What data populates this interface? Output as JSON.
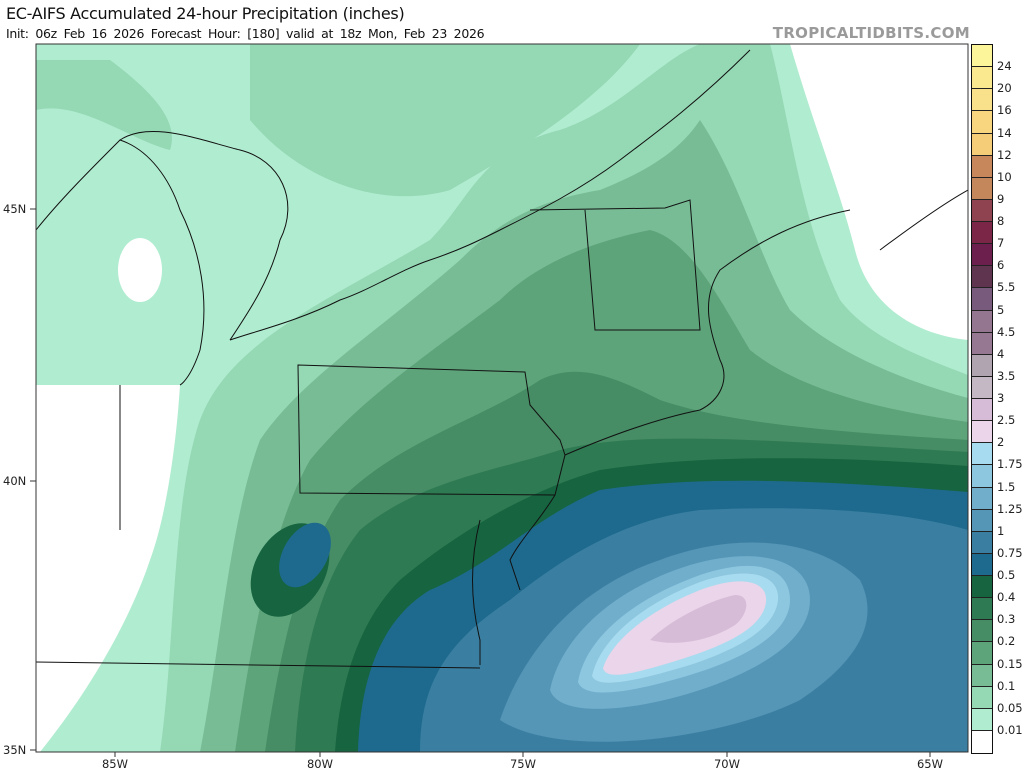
{
  "header": {
    "title": "EC-AIFS Accumulated 24-hour Precipitation (inches)",
    "subtitle": "Init: 06z Feb 16 2026   Forecast Hour: [180]   valid at 18z Mon, Feb 23 2026",
    "brand": "TROPICALTIDBITS.COM"
  },
  "map": {
    "lat_labels": [
      "45N",
      "40N",
      "35N"
    ],
    "lon_labels": [
      "85W",
      "80W",
      "75W",
      "70W",
      "65W"
    ],
    "max_region": "offshore southeast of New England, 2.5–3 in"
  },
  "colorbar": {
    "colors": [
      "#fdf59a",
      "#fbe98f",
      "#f9e08a",
      "#f8d67f",
      "#f5cc78",
      "#c8875a",
      "#c4875b",
      "#8f4350",
      "#7c2647",
      "#6c1f4c",
      "#5e344e",
      "#785a7d",
      "#957690",
      "#977892",
      "#b0a4b0",
      "#c5b8c5",
      "#d7bcd7",
      "#ead5ea",
      "#a7dbef",
      "#8dc6df",
      "#70aecb",
      "#5595b6",
      "#3a7fa1",
      "#1e6a8e",
      "#166440",
      "#2e7a52",
      "#468c64",
      "#5ea47a",
      "#78bc96",
      "#94d8b4",
      "#b0ecd0",
      "#ffffff"
    ],
    "labels": [
      "24",
      "20",
      "16",
      "14",
      "12",
      "10",
      "9",
      "8",
      "7",
      "6",
      "5.5",
      "5",
      "4.5",
      "4",
      "3.5",
      "3",
      "2.5",
      "2",
      "1.75",
      "1.5",
      "1.25",
      "1",
      "0.75",
      "0.5",
      "0.4",
      "0.3",
      "0.2",
      "0.15",
      "0.1",
      "0.05",
      "0.01"
    ]
  }
}
